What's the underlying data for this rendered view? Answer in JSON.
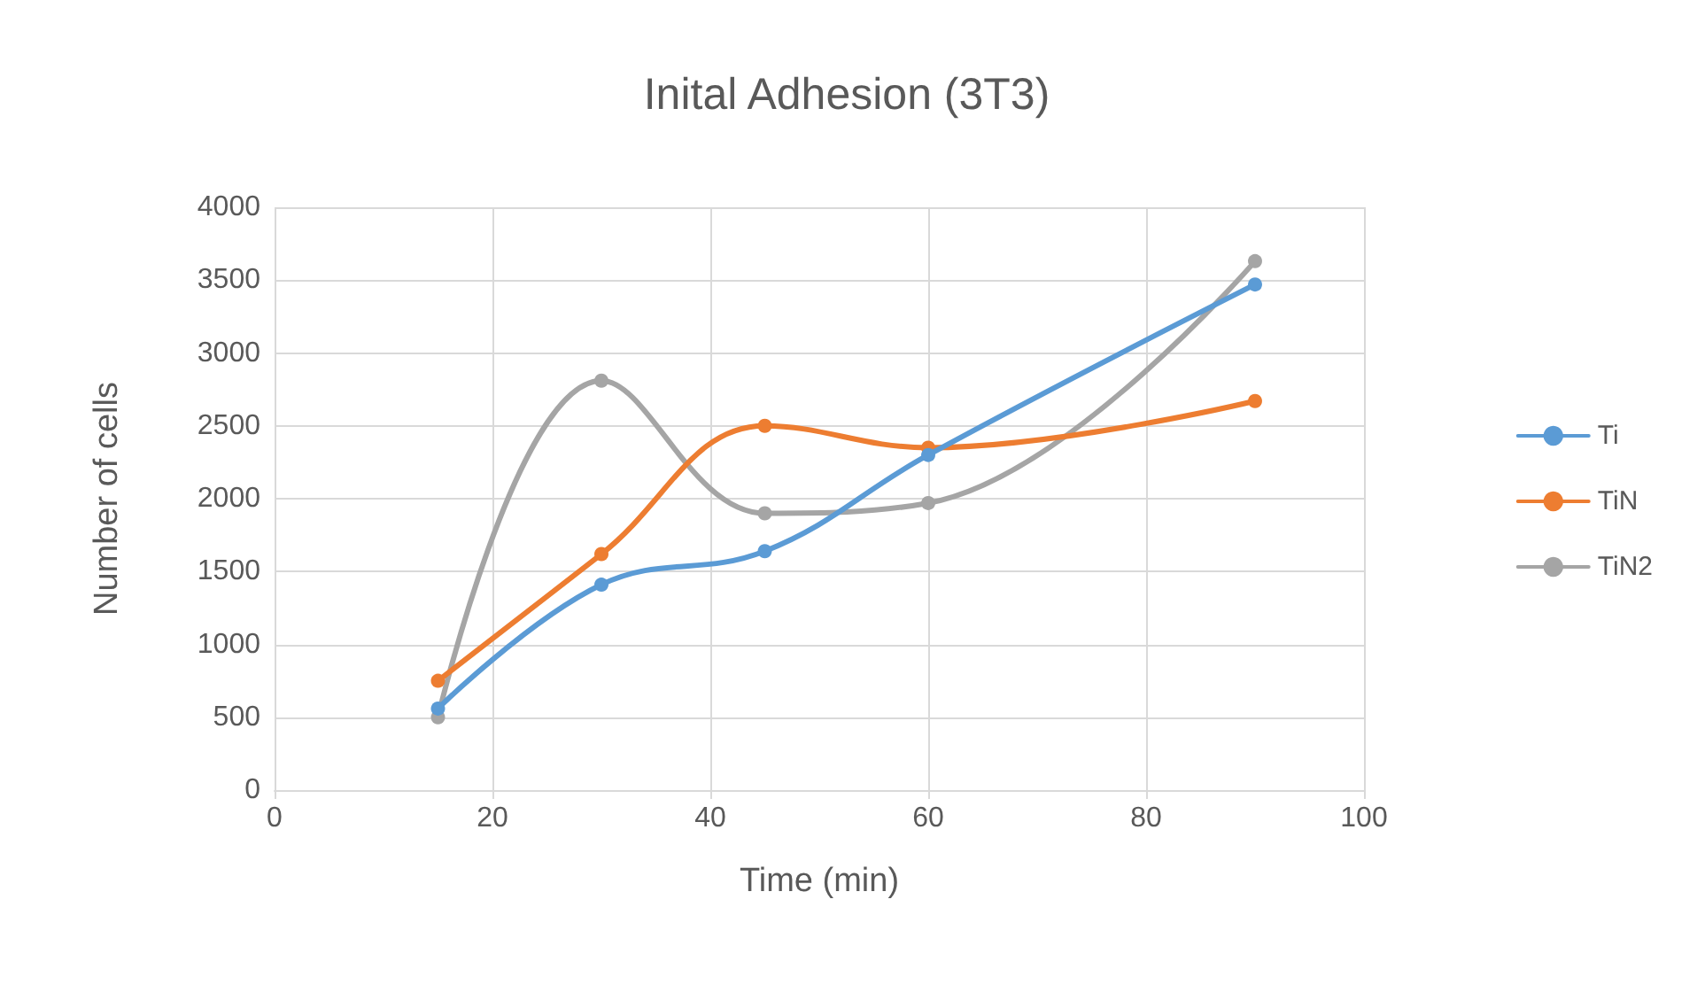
{
  "chart_data": {
    "type": "line",
    "title": "Inital Adhesion (3T3)",
    "xlabel": "Time (min)",
    "ylabel": "Number of cells",
    "x": [
      15,
      30,
      45,
      60,
      90
    ],
    "series": [
      {
        "name": "Ti",
        "color": "#5b9bd5",
        "values": [
          560,
          1410,
          1640,
          2300,
          3470
        ]
      },
      {
        "name": "TiN",
        "color": "#ed7d31",
        "values": [
          750,
          1620,
          2500,
          2350,
          2670
        ]
      },
      {
        "name": "TiN2",
        "color": "#a5a5a5",
        "values": [
          500,
          2810,
          1900,
          1970,
          3630
        ]
      }
    ],
    "xlim": [
      0,
      100
    ],
    "xticks": [
      0,
      20,
      40,
      60,
      80,
      100
    ],
    "ylim": [
      0,
      4000
    ],
    "yticks": [
      0,
      500,
      1000,
      1500,
      2000,
      2500,
      3000,
      3500,
      4000
    ],
    "grid": true,
    "legend": "right",
    "marker": "circle",
    "line_style": "solid"
  }
}
